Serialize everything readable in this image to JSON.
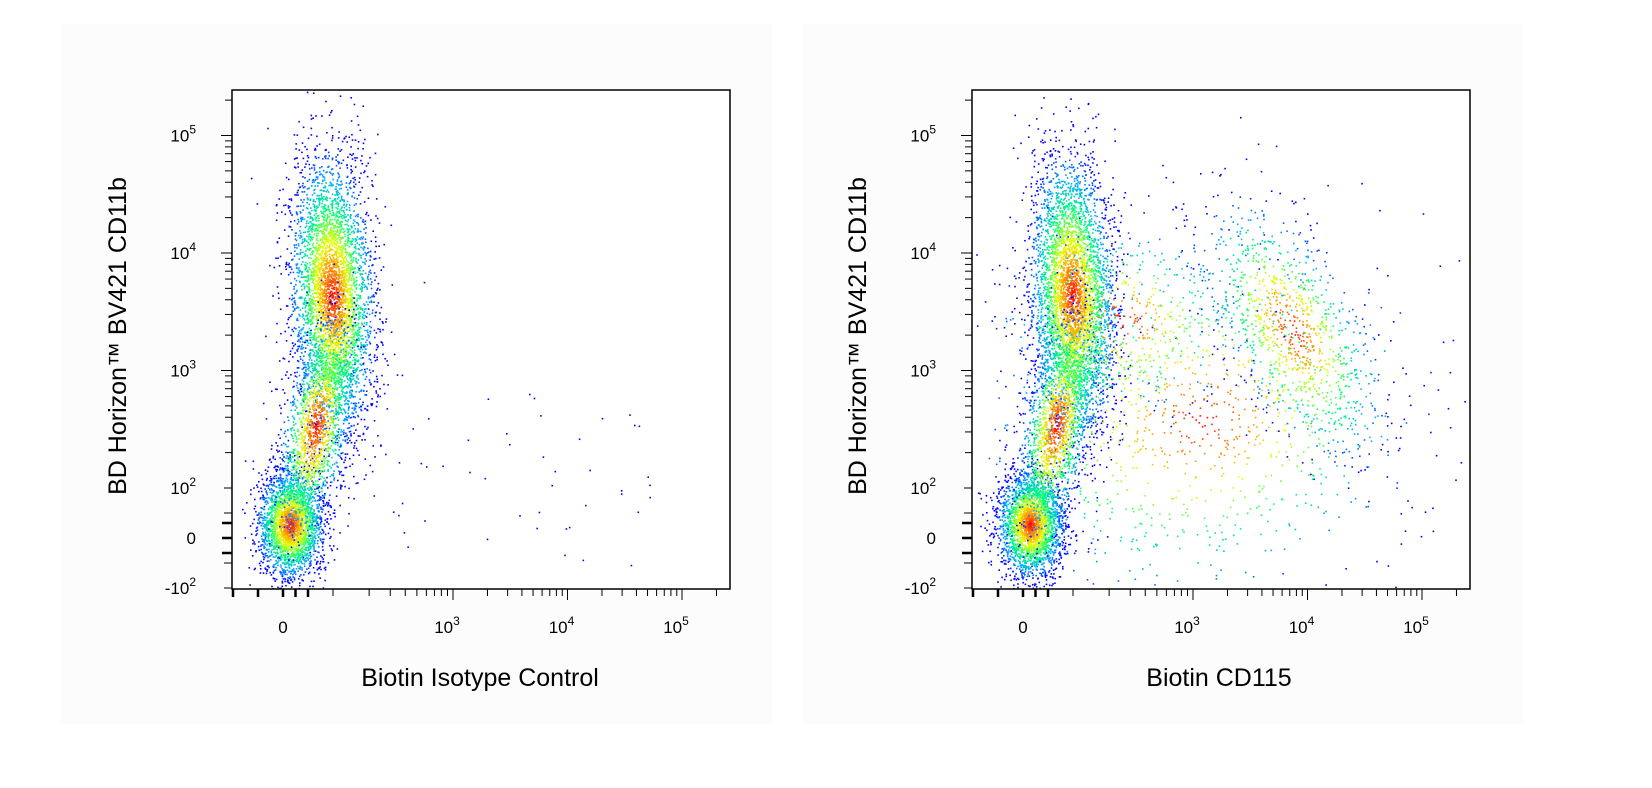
{
  "chart_data": [
    {
      "type": "scatter",
      "subtype": "flow-cytometry-density-dot-plot",
      "xlabel": "Biotin Isotype Control",
      "ylabel": "BD Horizon™ BV421 CD11b",
      "x_scale": "biexponential",
      "y_scale": "biexponential",
      "xlim": [
        -200,
        200000
      ],
      "ylim": [
        -120,
        250000
      ],
      "x_tick_labels": [
        "0",
        "10^3",
        "10^4",
        "10^5"
      ],
      "y_tick_labels": [
        "10^5",
        "10^4",
        "10^3",
        "10^2",
        "0",
        "-10^2"
      ],
      "color_scale": [
        "#0000ff",
        "#00c8ff",
        "#00ff80",
        "#ffff00",
        "#ff0000"
      ],
      "populations": [
        {
          "center": [
            20,
            40
          ],
          "relative_size": 0.55,
          "peak_color": "#ff0000"
        },
        {
          "center": [
            150,
            5000
          ],
          "relative_size": 1.0,
          "peak_color": "#ff0000"
        }
      ],
      "grid": false,
      "legend": "none"
    },
    {
      "type": "scatter",
      "subtype": "flow-cytometry-density-dot-plot",
      "xlabel": "Biotin CD115",
      "ylabel": "BD Horizon™ BV421 CD11b",
      "x_scale": "biexponential",
      "y_scale": "biexponential",
      "xlim": [
        -200,
        200000
      ],
      "ylim": [
        -120,
        250000
      ],
      "x_tick_labels": [
        "0",
        "10^3",
        "10^4",
        "10^5"
      ],
      "y_tick_labels": [
        "10^5",
        "10^4",
        "10^3",
        "10^2",
        "0",
        "-10^2"
      ],
      "color_scale": [
        "#0000ff",
        "#00c8ff",
        "#00ff80",
        "#ffff00",
        "#ff0000"
      ],
      "populations": [
        {
          "center": [
            20,
            40
          ],
          "relative_size": 0.5,
          "peak_color": "#ff0000"
        },
        {
          "center": [
            120,
            5000
          ],
          "relative_size": 1.0,
          "peak_color": "#ff0000"
        },
        {
          "center": [
            7000,
            2000
          ],
          "relative_size": 0.25,
          "peak_color": "#0000ff"
        }
      ],
      "grid": false,
      "legend": "none"
    }
  ]
}
